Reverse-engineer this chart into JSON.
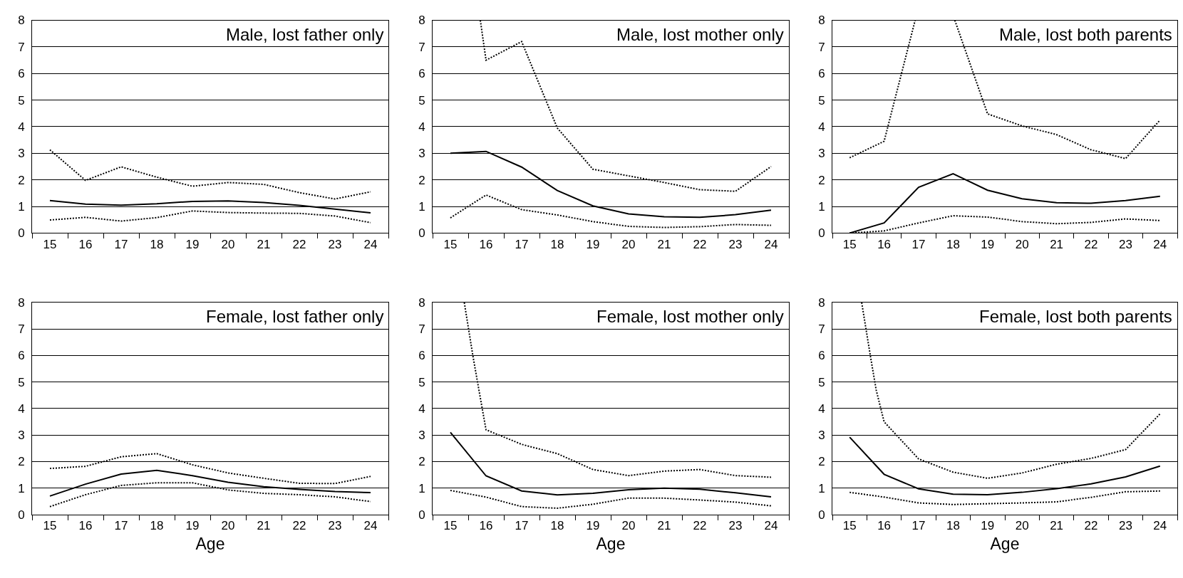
{
  "chart_data": [
    {
      "type": "line",
      "title": "Male, lost father only",
      "x": [
        15,
        16,
        17,
        18,
        19,
        20,
        21,
        22,
        23,
        24
      ],
      "xlim": [
        14.5,
        24.5
      ],
      "xticks": [
        15,
        16,
        17,
        18,
        19,
        20,
        21,
        22,
        23,
        24
      ],
      "ylim": [
        0,
        8
      ],
      "yticks": [
        0,
        1,
        2,
        3,
        4,
        5,
        6,
        7,
        8
      ],
      "grid": "y",
      "tick_labels": true,
      "series": [
        {
          "color": "#000000",
          "line_style": "solid",
          "values": [
            1.22,
            1.09,
            1.05,
            1.1,
            1.19,
            1.21,
            1.15,
            1.04,
            0.9,
            0.76
          ]
        },
        {
          "color": "#000000",
          "line_style": "dotted",
          "values": [
            3.13,
            1.98,
            2.49,
            2.1,
            1.76,
            1.9,
            1.83,
            1.52,
            1.28,
            1.55
          ]
        },
        {
          "color": "#000000",
          "line_style": "dotted",
          "values": [
            0.49,
            0.59,
            0.45,
            0.58,
            0.83,
            0.77,
            0.75,
            0.74,
            0.64,
            0.39
          ]
        }
      ]
    },
    {
      "type": "line",
      "title": "Male, lost mother only",
      "x": [
        15,
        16,
        17,
        18,
        19,
        20,
        21,
        22,
        23,
        24
      ],
      "xlim": [
        14.5,
        24.5
      ],
      "xticks": [
        15,
        16,
        17,
        18,
        19,
        20,
        21,
        22,
        23,
        24
      ],
      "ylim": [
        0,
        8
      ],
      "yticks": [
        0,
        1,
        2,
        3,
        4,
        5,
        6,
        7,
        8
      ],
      "grid": "y",
      "series": [
        {
          "color": "#000000",
          "line_style": "solid",
          "values": [
            3.0,
            3.07,
            2.48,
            1.6,
            1.02,
            0.72,
            0.61,
            0.59,
            0.69,
            0.86
          ]
        },
        {
          "color": "#000000",
          "line_style": "dotted",
          "x": [
            15.84,
            16,
            17,
            18,
            19,
            20,
            21,
            22,
            23,
            24
          ],
          "values": [
            8,
            6.5,
            7.2,
            3.95,
            2.4,
            2.15,
            1.9,
            1.63,
            1.57,
            2.5
          ]
        },
        {
          "color": "#000000",
          "line_style": "dotted",
          "values": [
            0.57,
            1.43,
            0.88,
            0.68,
            0.43,
            0.25,
            0.21,
            0.24,
            0.32,
            0.29
          ]
        }
      ]
    },
    {
      "type": "line",
      "title": "Male, lost both parents",
      "x": [
        15,
        16,
        17,
        18,
        19,
        20,
        21,
        22,
        23,
        24
      ],
      "xlim": [
        14.5,
        24.5
      ],
      "xticks": [
        15,
        16,
        17,
        18,
        19,
        20,
        21,
        22,
        23,
        24
      ],
      "ylim": [
        0,
        8
      ],
      "yticks": [
        0,
        1,
        2,
        3,
        4,
        5,
        6,
        7,
        8
      ],
      "grid": "y",
      "series": [
        {
          "color": "#000000",
          "line_style": "solid",
          "values": [
            0.0,
            0.38,
            1.72,
            2.23,
            1.61,
            1.29,
            1.14,
            1.12,
            1.22,
            1.38
          ]
        },
        {
          "color": "#000000",
          "line_style": "dotted",
          "x": [
            15,
            16,
            16.9,
            17.5,
            18.05,
            19,
            20,
            21,
            22,
            23,
            24
          ],
          "values": [
            2.83,
            3.45,
            8,
            null,
            8,
            4.48,
            4.03,
            3.7,
            3.13,
            2.8,
            4.25
          ]
        },
        {
          "color": "#000000",
          "line_style": "dotted",
          "values": [
            0.0,
            0.08,
            0.38,
            0.65,
            0.6,
            0.43,
            0.35,
            0.4,
            0.53,
            0.47
          ]
        }
      ]
    },
    {
      "type": "line",
      "title": "Female, lost father only",
      "xlabel": "Age",
      "x": [
        15,
        16,
        17,
        18,
        19,
        20,
        21,
        22,
        23,
        24
      ],
      "xlim": [
        14.5,
        24.5
      ],
      "xticks": [
        15,
        16,
        17,
        18,
        19,
        20,
        21,
        22,
        23,
        24
      ],
      "ylim": [
        0,
        8
      ],
      "yticks": [
        0,
        1,
        2,
        3,
        4,
        5,
        6,
        7,
        8
      ],
      "grid": "y",
      "series": [
        {
          "color": "#000000",
          "line_style": "solid",
          "values": [
            0.7,
            1.15,
            1.53,
            1.67,
            1.47,
            1.22,
            1.05,
            0.95,
            0.87,
            0.83
          ]
        },
        {
          "color": "#000000",
          "line_style": "dotted",
          "values": [
            1.74,
            1.82,
            2.18,
            2.3,
            1.88,
            1.57,
            1.37,
            1.18,
            1.17,
            1.44
          ]
        },
        {
          "color": "#000000",
          "line_style": "dotted",
          "values": [
            0.3,
            0.75,
            1.1,
            1.2,
            1.2,
            0.93,
            0.8,
            0.75,
            0.67,
            0.49
          ]
        }
      ]
    },
    {
      "type": "line",
      "title": "Female, lost mother only",
      "xlabel": "Age",
      "x": [
        15,
        16,
        17,
        18,
        19,
        20,
        21,
        22,
        23,
        24
      ],
      "xlim": [
        14.5,
        24.5
      ],
      "xticks": [
        15,
        16,
        17,
        18,
        19,
        20,
        21,
        22,
        23,
        24
      ],
      "ylim": [
        0,
        8
      ],
      "yticks": [
        0,
        1,
        2,
        3,
        4,
        5,
        6,
        7,
        8
      ],
      "grid": "y",
      "series": [
        {
          "color": "#000000",
          "line_style": "solid",
          "values": [
            3.1,
            1.46,
            0.89,
            0.74,
            0.8,
            0.94,
            1.0,
            0.96,
            0.82,
            0.67
          ]
        },
        {
          "color": "#000000",
          "line_style": "dotted",
          "x": [
            15.39,
            15.63,
            15.84,
            16,
            17,
            18,
            19,
            20,
            21,
            22,
            23,
            24
          ],
          "values": [
            8,
            6.0,
            4.4,
            3.2,
            2.65,
            2.3,
            1.7,
            1.47,
            1.64,
            1.7,
            1.47,
            1.41
          ]
        },
        {
          "color": "#000000",
          "line_style": "dotted",
          "values": [
            0.91,
            0.66,
            0.3,
            0.24,
            0.39,
            0.62,
            0.62,
            0.55,
            0.47,
            0.33
          ]
        }
      ]
    },
    {
      "type": "line",
      "title": "Female, lost both parents",
      "xlabel": "Age",
      "x": [
        15,
        16,
        17,
        18,
        19,
        20,
        21,
        22,
        23,
        24
      ],
      "xlim": [
        14.5,
        24.5
      ],
      "xticks": [
        15,
        16,
        17,
        18,
        19,
        20,
        21,
        22,
        23,
        24
      ],
      "ylim": [
        0,
        8
      ],
      "yticks": [
        0,
        1,
        2,
        3,
        4,
        5,
        6,
        7,
        8
      ],
      "grid": "y",
      "series": [
        {
          "color": "#000000",
          "line_style": "solid",
          "values": [
            2.92,
            1.52,
            0.97,
            0.77,
            0.75,
            0.84,
            0.98,
            1.16,
            1.42,
            1.83
          ]
        },
        {
          "color": "#000000",
          "line_style": "dotted",
          "x": [
            15.35,
            15.6,
            15.77,
            16,
            17,
            18,
            19,
            20,
            21,
            22,
            23,
            24
          ],
          "values": [
            8,
            6.0,
            4.7,
            3.5,
            2.1,
            1.6,
            1.37,
            1.57,
            1.9,
            2.12,
            2.45,
            3.8
          ]
        },
        {
          "color": "#000000",
          "line_style": "dotted",
          "values": [
            0.84,
            0.66,
            0.44,
            0.38,
            0.41,
            0.44,
            0.48,
            0.65,
            0.86,
            0.89
          ]
        }
      ]
    }
  ]
}
